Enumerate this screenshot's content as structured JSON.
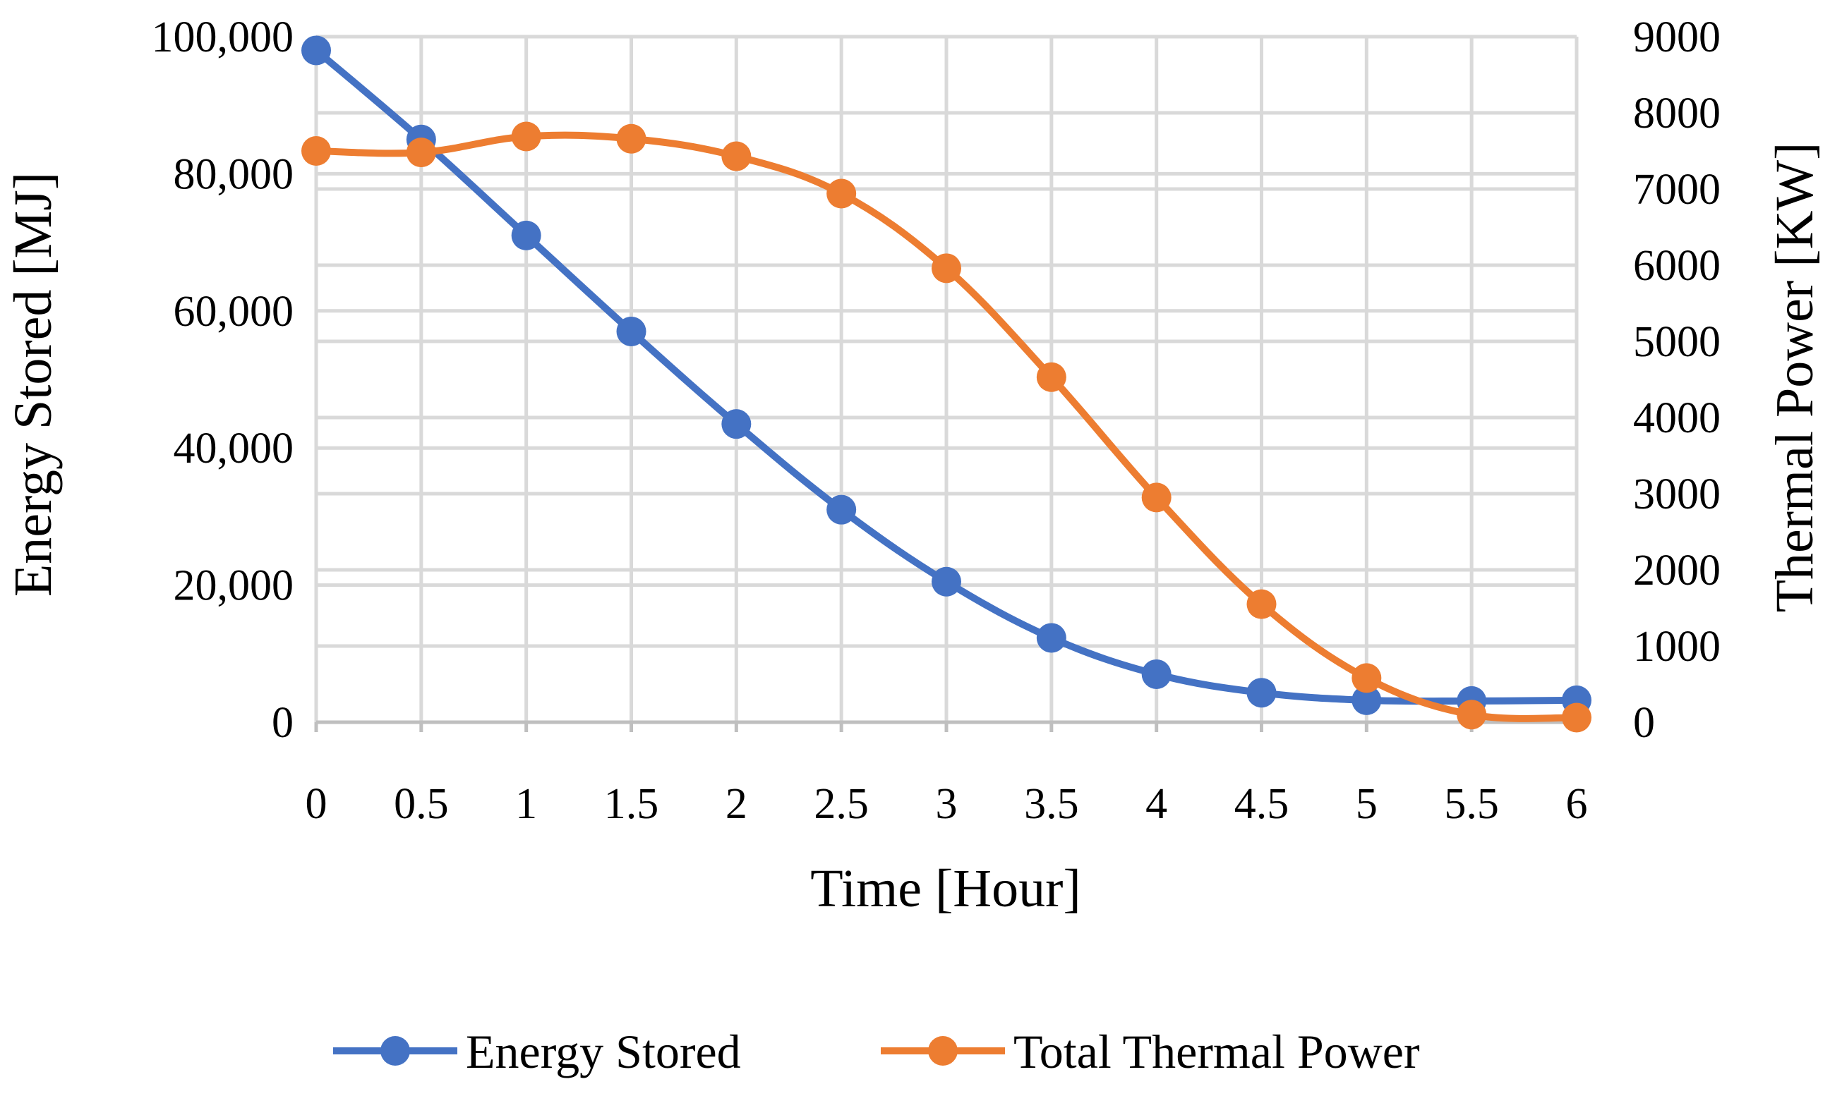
{
  "chart_data": {
    "type": "line",
    "title": "",
    "xlabel": "Time [Hour]",
    "ylabel": "Energy Stored [MJ]",
    "y2label": "Thermal Power [KW]",
    "x": [
      0,
      0.5,
      1,
      1.5,
      2,
      2.5,
      3,
      3.5,
      4,
      4.5,
      5,
      5.5,
      6
    ],
    "x_tick_labels": [
      "0",
      "0.5",
      "1",
      "1.5",
      "2",
      "2.5",
      "3",
      "3.5",
      "4",
      "4.5",
      "5",
      "5.5",
      "6"
    ],
    "ylim": [
      0,
      100000
    ],
    "y_ticks": [
      0,
      20000,
      40000,
      60000,
      80000,
      100000
    ],
    "y_tick_labels": [
      "0",
      "20,000",
      "40,000",
      "60,000",
      "80,000",
      "100,000"
    ],
    "y2lim": [
      0,
      9000
    ],
    "y2_ticks": [
      0,
      1000,
      2000,
      3000,
      4000,
      5000,
      6000,
      7000,
      8000,
      9000
    ],
    "y2_tick_labels": [
      "0",
      "1000",
      "2000",
      "3000",
      "4000",
      "5000",
      "6000",
      "7000",
      "8000",
      "9000"
    ],
    "grid": true,
    "legend_position": "bottom",
    "series": [
      {
        "name": "Energy Stored",
        "axis": "left",
        "color": "#4472c4",
        "values": [
          98000,
          85000,
          71000,
          57000,
          43500,
          31000,
          20500,
          12300,
          7000,
          4300,
          3200,
          3100,
          3200
        ]
      },
      {
        "name": "Total Thermal Power",
        "axis": "right",
        "color": "#ed7d31",
        "values": [
          7500,
          7480,
          7690,
          7660,
          7430,
          6940,
          5960,
          4530,
          2950,
          1550,
          580,
          100,
          60
        ]
      }
    ]
  }
}
